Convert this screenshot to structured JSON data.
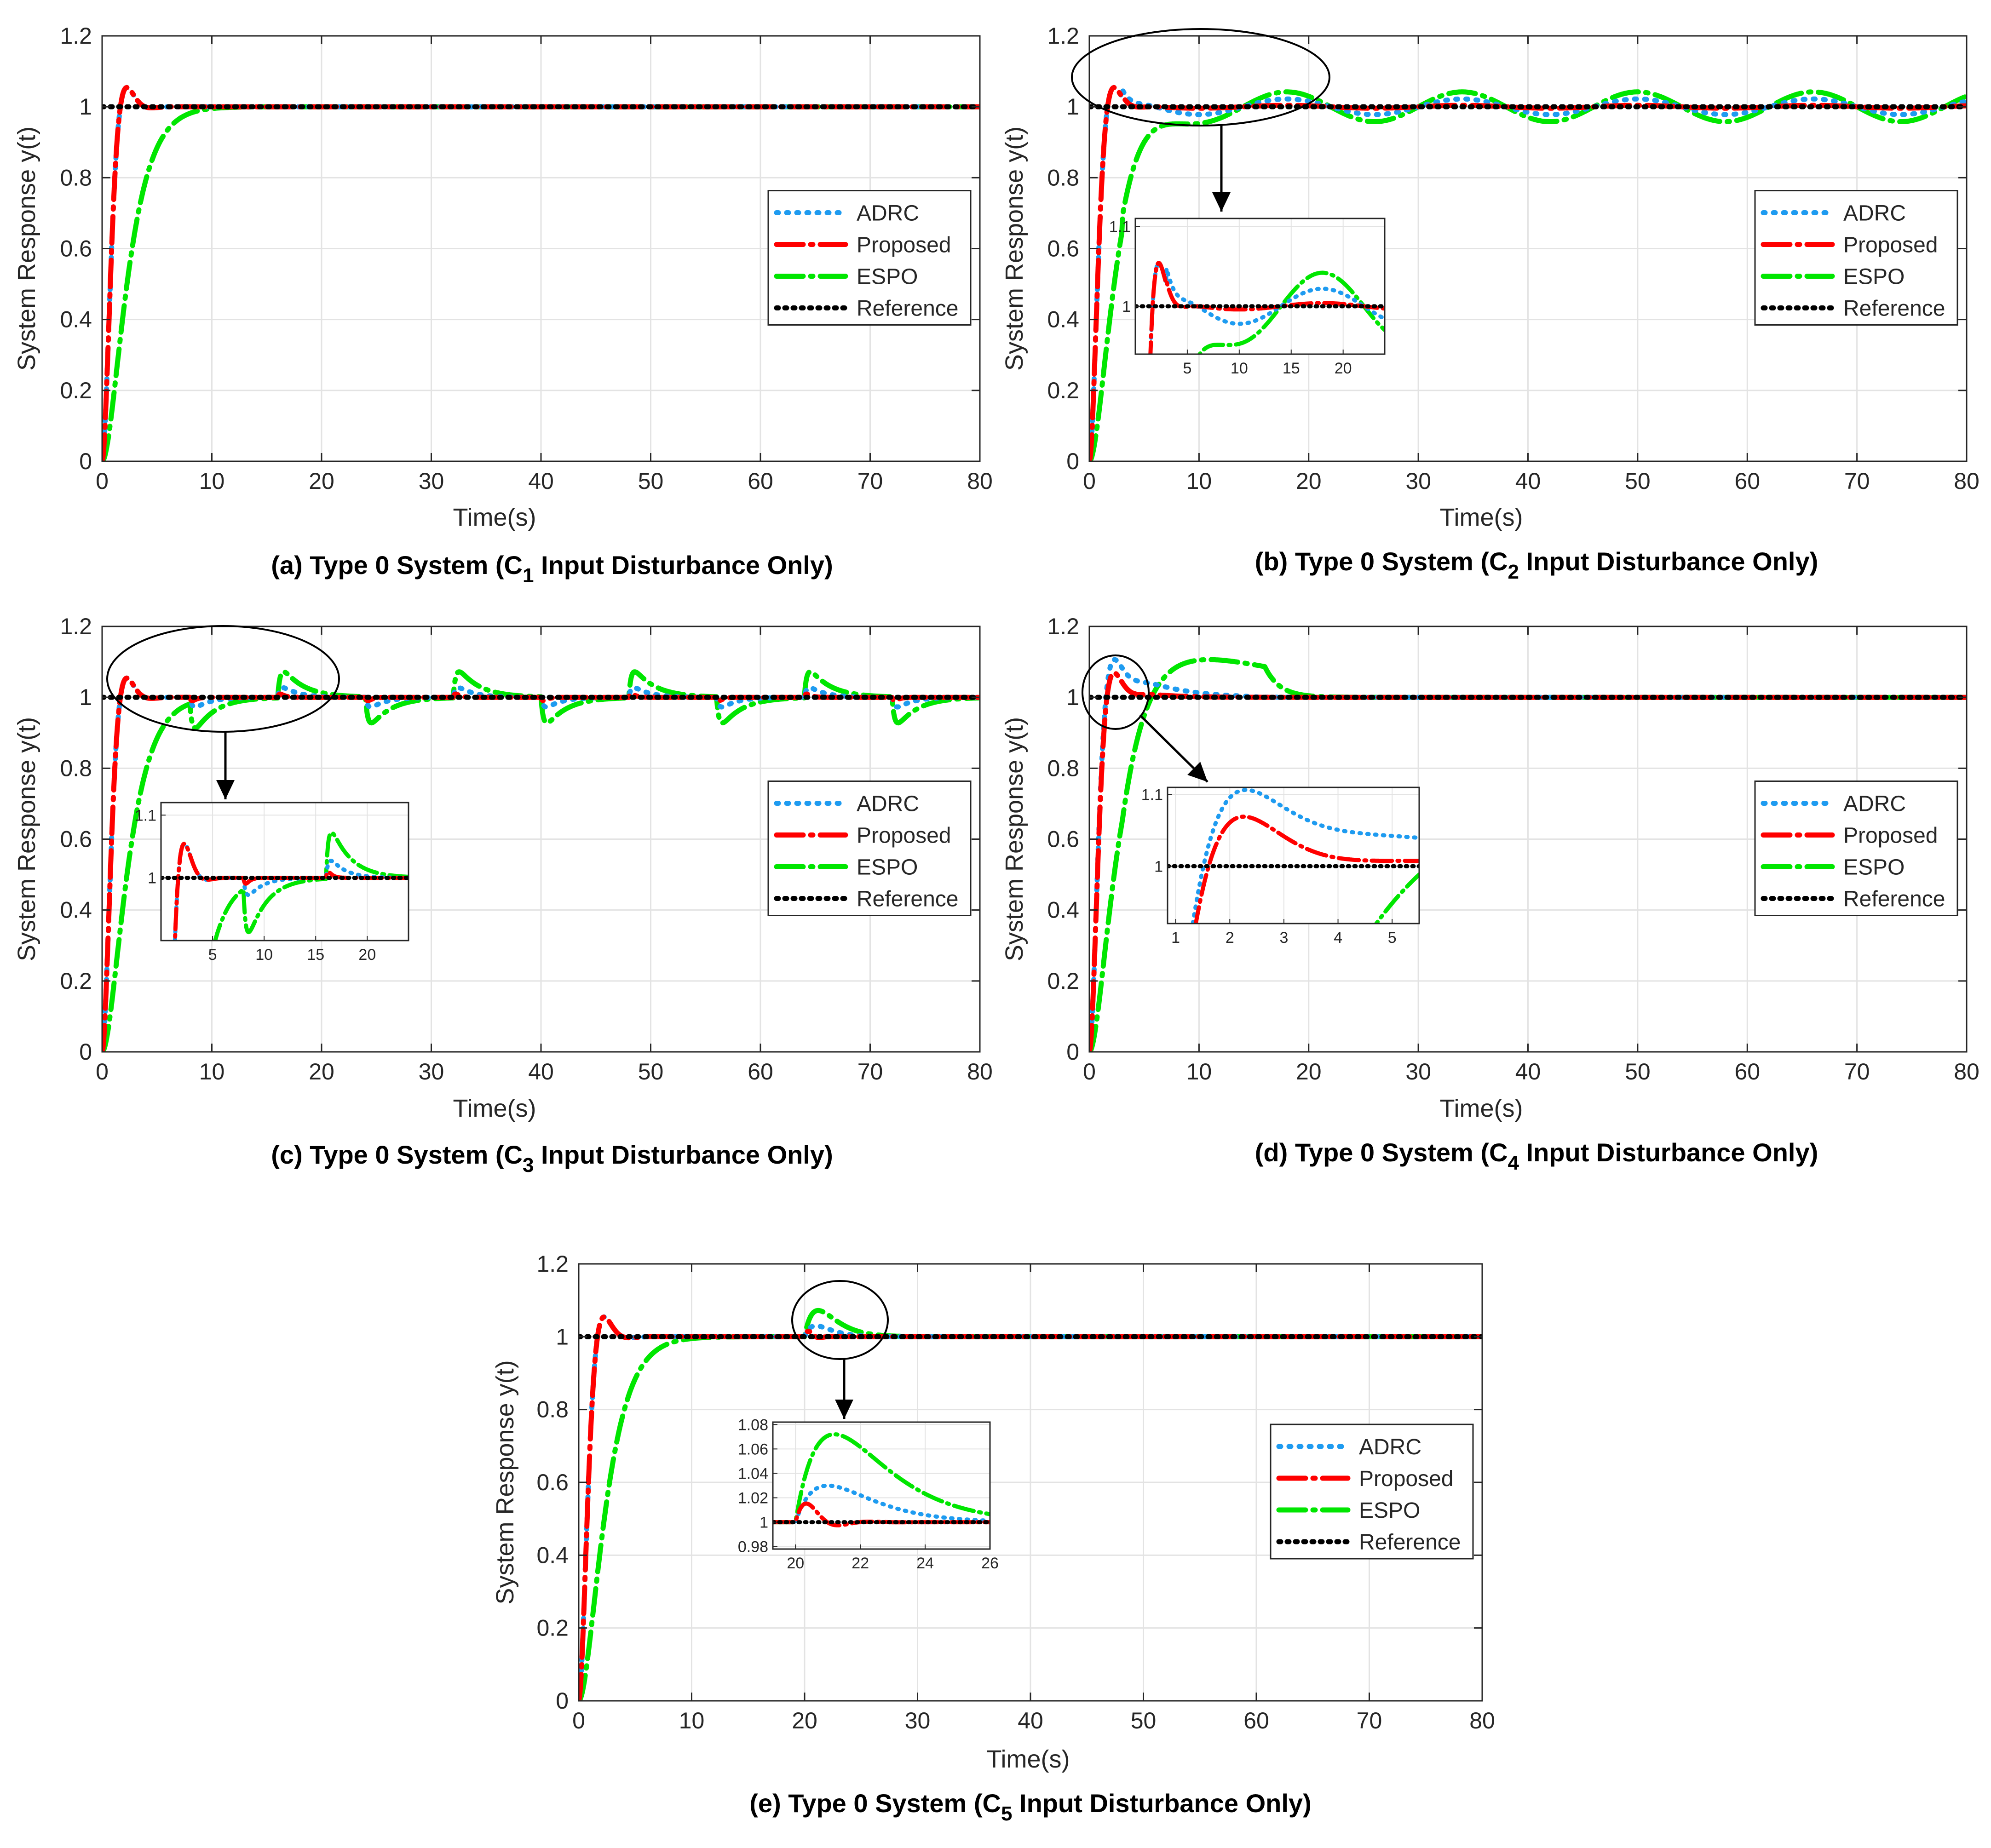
{
  "colors": {
    "adrc": "#1E9BF0",
    "proposed": "#FF0000",
    "espo": "#00E600",
    "reference": "#000000"
  },
  "chart_data": [
    {
      "type": "line",
      "panel": "a",
      "caption_pre": "(a) Type 0 System (C",
      "caption_sub": "1",
      "caption_post": " Input Disturbance Only)",
      "xlabel": "Time(s)",
      "ylabel": "System Response y(t)",
      "xlim": [
        0,
        80
      ],
      "ylim": [
        0,
        1.2
      ],
      "xticks": [
        0,
        10,
        20,
        30,
        40,
        50,
        60,
        70,
        80
      ],
      "yticks": [
        0,
        0.2,
        0.4,
        0.6,
        0.8,
        1,
        1.2
      ],
      "grid": true,
      "legend": [
        "ADRC",
        "Proposed",
        "ESPO",
        "Reference"
      ],
      "legend_position": "right-middle",
      "disturbance": "none",
      "inset": null
    },
    {
      "type": "line",
      "panel": "b",
      "caption_pre": "(b) Type 0 System (C",
      "caption_sub": "2",
      "caption_post": " Input Disturbance Only)",
      "xlabel": "Time(s)",
      "ylabel": "System Response y(t)",
      "xlim": [
        0,
        80
      ],
      "ylim": [
        0,
        1.2
      ],
      "xticks": [
        0,
        10,
        20,
        30,
        40,
        50,
        60,
        70,
        80
      ],
      "yticks": [
        0,
        0.2,
        0.4,
        0.6,
        0.8,
        1,
        1.2
      ],
      "grid": true,
      "legend": [
        "ADRC",
        "Proposed",
        "ESPO",
        "Reference"
      ],
      "legend_position": "right-middle",
      "disturbance": "sine",
      "inset": {
        "xlim": [
          0,
          24
        ],
        "ylim": [
          0.94,
          1.11
        ],
        "xticks": [
          5,
          10,
          15,
          20
        ],
        "yticks": [
          1,
          1.1
        ],
        "zoom_center": [
          10,
          1.02
        ]
      }
    },
    {
      "type": "line",
      "panel": "c",
      "caption_pre": "(c) Type 0 System (C",
      "caption_sub": "3",
      "caption_post": " Input Disturbance Only)",
      "xlabel": "Time(s)",
      "ylabel": "System Response y(t)",
      "xlim": [
        0,
        80
      ],
      "ylim": [
        0,
        1.2
      ],
      "xticks": [
        0,
        10,
        20,
        30,
        40,
        50,
        60,
        70,
        80
      ],
      "yticks": [
        0,
        0.2,
        0.4,
        0.6,
        0.8,
        1,
        1.2
      ],
      "grid": true,
      "legend": [
        "ADRC",
        "Proposed",
        "ESPO",
        "Reference"
      ],
      "legend_position": "right-middle",
      "disturbance": "square",
      "inset": {
        "xlim": [
          0,
          24
        ],
        "ylim": [
          0.9,
          1.12
        ],
        "xticks": [
          5,
          10,
          15,
          20
        ],
        "yticks": [
          1,
          1.1
        ],
        "zoom_center": [
          11,
          1.0
        ]
      }
    },
    {
      "type": "line",
      "panel": "d",
      "caption_pre": "(d) Type 0 System (C",
      "caption_sub": "4",
      "caption_post": " Input Disturbance Only)",
      "xlabel": "Time(s)",
      "ylabel": "System Response y(t)",
      "xlim": [
        0,
        80
      ],
      "ylim": [
        0,
        1.2
      ],
      "xticks": [
        0,
        10,
        20,
        30,
        40,
        50,
        60,
        70,
        80
      ],
      "yticks": [
        0,
        0.2,
        0.4,
        0.6,
        0.8,
        1,
        1.2
      ],
      "grid": true,
      "legend": [
        "ADRC",
        "Proposed",
        "ESPO",
        "Reference"
      ],
      "legend_position": "right-middle",
      "disturbance": "bump",
      "inset": {
        "xlim": [
          0.85,
          5.5
        ],
        "ylim": [
          0.92,
          1.11
        ],
        "xticks": [
          1,
          2,
          3,
          4,
          5
        ],
        "yticks": [
          1,
          1.1
        ],
        "zoom_center": [
          2.5,
          1.02
        ]
      }
    },
    {
      "type": "line",
      "panel": "e",
      "caption_pre": "(e) Type 0 System (C",
      "caption_sub": "5",
      "caption_post": " Input Disturbance Only)",
      "xlabel": "Time(s)",
      "ylabel": "System Response y(t)",
      "xlim": [
        0,
        80
      ],
      "ylim": [
        0,
        1.2
      ],
      "xticks": [
        0,
        10,
        20,
        30,
        40,
        50,
        60,
        70,
        80
      ],
      "yticks": [
        0,
        0.2,
        0.4,
        0.6,
        0.8,
        1,
        1.2
      ],
      "grid": true,
      "legend": [
        "ADRC",
        "Proposed",
        "ESPO",
        "Reference"
      ],
      "legend_position": "right-middle",
      "disturbance": "pulse",
      "inset": {
        "xlim": [
          19.3,
          26
        ],
        "ylim": [
          0.978,
          1.082
        ],
        "xticks": [
          20,
          22,
          24,
          26
        ],
        "yticks": [
          0.98,
          1,
          1.02,
          1.04,
          1.06,
          1.08
        ],
        "zoom_center": [
          22,
          1.03
        ]
      }
    }
  ]
}
